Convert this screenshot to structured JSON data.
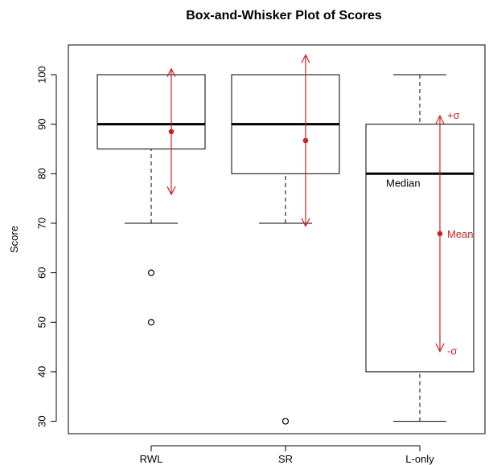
{
  "chart_data": {
    "type": "box",
    "title": "Box-and-Whisker Plot of Scores",
    "xlabel": "",
    "ylabel": "Score",
    "ylim": [
      27.5,
      106
    ],
    "yticks": [
      30,
      40,
      50,
      60,
      70,
      80,
      90,
      100
    ],
    "categories": [
      "RWL",
      "SR",
      "L-only"
    ],
    "boxes": [
      {
        "name": "RWL",
        "whisker_low": 70,
        "q1": 85,
        "median": 90,
        "q3": 100,
        "whisker_high": 100,
        "outliers": [
          60,
          50
        ],
        "mean": 88.5,
        "sd_low": 75.8,
        "sd_high": 101.2
      },
      {
        "name": "SR",
        "whisker_low": 70,
        "q1": 80,
        "median": 90,
        "q3": 100,
        "whisker_high": 100,
        "outliers": [
          30
        ],
        "mean": 86.7,
        "sd_low": 69.4,
        "sd_high": 104.0
      },
      {
        "name": "L-only",
        "whisker_low": 30,
        "q1": 40,
        "median": 80,
        "q3": 90,
        "whisker_high": 100,
        "outliers": [],
        "mean": 67.9,
        "sd_low": 44.1,
        "sd_high": 91.7
      }
    ],
    "annotations": {
      "median": "Median",
      "mean": "Mean",
      "plus_sd": "+σ",
      "minus_sd": "-σ"
    },
    "colors": {
      "box": "#000000",
      "mean_sd": "#cc2222"
    }
  }
}
